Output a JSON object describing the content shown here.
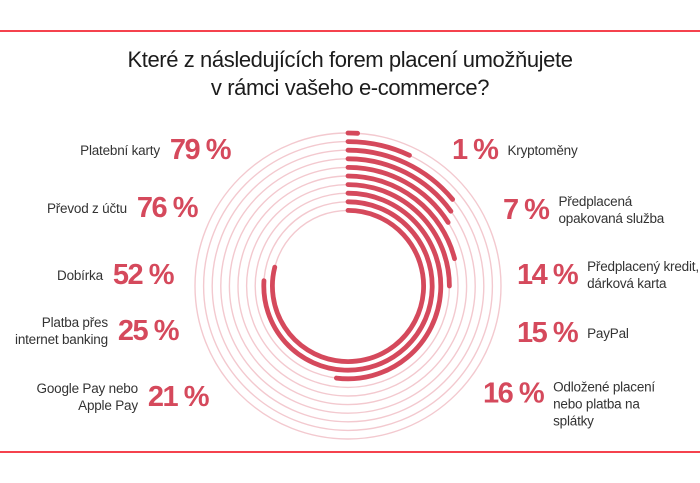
{
  "title": {
    "line1": "Které z následujících forem placení umožňujete",
    "line2": "v rámci vašeho e-commerce?"
  },
  "colors": {
    "percent_text": "#d5495c",
    "arc": "#d5495c",
    "track": "#f3c9cf",
    "rule_line": "#f5424e",
    "title_text": "#1c1c1c",
    "label_text": "#333333"
  },
  "chart_data": {
    "type": "radial-bar",
    "title": "Které z následujících forem placení umožňujete v rámci vašeho e-commerce?",
    "unit": "%",
    "value_range": [
      0,
      100
    ],
    "start": "top",
    "direction": "clockwise",
    "rings_outer_to_inner": [
      {
        "label": "Kryptoměny",
        "value": 1
      },
      {
        "label": "Předplacená opakovaná služba",
        "value": 7
      },
      {
        "label": "Předplacený kredit, dárková karta",
        "value": 14
      },
      {
        "label": "PayPal",
        "value": 15
      },
      {
        "label": "Odložené placení nebo platba na splátky",
        "value": 16
      },
      {
        "label": "Google Pay nebo Apple Pay",
        "value": 21
      },
      {
        "label": "Platba přes internet banking",
        "value": 25
      },
      {
        "label": "Dobírka",
        "value": 52
      },
      {
        "label": "Převod z účtu",
        "value": 76
      },
      {
        "label": "Platební karty",
        "value": 79
      }
    ]
  },
  "left_callouts": [
    {
      "value": "79 %",
      "label_lines": [
        "Platební karty"
      ]
    },
    {
      "value": "76 %",
      "label_lines": [
        "Převod z účtu"
      ]
    },
    {
      "value": "52 %",
      "label_lines": [
        "Dobírka"
      ]
    },
    {
      "value": "25 %",
      "label_lines": [
        "Platba přes",
        "internet banking"
      ]
    },
    {
      "value": "21 %",
      "label_lines": [
        "Google Pay nebo",
        "Apple Pay"
      ]
    }
  ],
  "right_callouts": [
    {
      "value": "1 %",
      "label_lines": [
        "Kryptoměny"
      ]
    },
    {
      "value": "7 %",
      "label_lines": [
        "Předplacená",
        "opakovaná služba"
      ]
    },
    {
      "value": "14 %",
      "label_lines": [
        "Předplacený kredit,",
        "dárková karta"
      ]
    },
    {
      "value": "15 %",
      "label_lines": [
        "PayPal"
      ]
    },
    {
      "value": "16 %",
      "label_lines": [
        "Odložené placení",
        "nebo platba na",
        "splátky"
      ]
    }
  ]
}
